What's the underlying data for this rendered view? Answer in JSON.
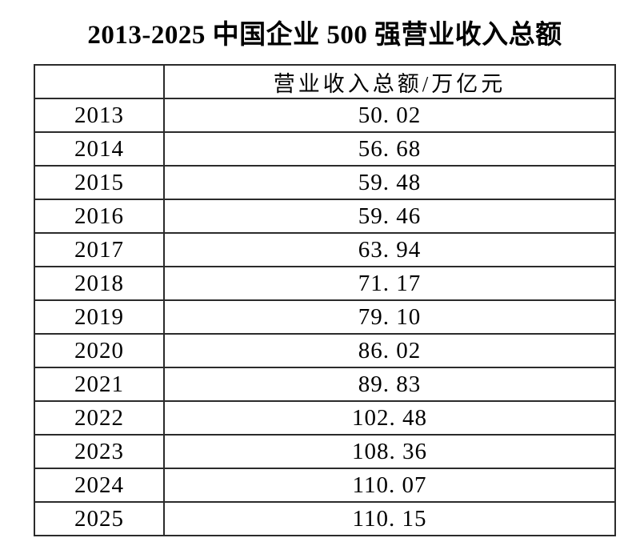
{
  "title": "2013-2025 中国企业 500 强营业收入总额",
  "table": {
    "header": {
      "year_label": "",
      "value_label": "营业收入总额/万亿元"
    },
    "rows": [
      {
        "year": "2013",
        "value": "50. 02"
      },
      {
        "year": "2014",
        "value": "56. 68"
      },
      {
        "year": "2015",
        "value": "59. 48"
      },
      {
        "year": "2016",
        "value": "59. 46"
      },
      {
        "year": "2017",
        "value": "63. 94"
      },
      {
        "year": "2018",
        "value": "71. 17"
      },
      {
        "year": "2019",
        "value": "79. 10"
      },
      {
        "year": "2020",
        "value": "86. 02"
      },
      {
        "year": "2021",
        "value": "89. 83"
      },
      {
        "year": "2022",
        "value": "102. 48"
      },
      {
        "year": "2023",
        "value": "108. 36"
      },
      {
        "year": "2024",
        "value": "110. 07"
      },
      {
        "year": "2025",
        "value": "110. 15"
      }
    ]
  },
  "chart_data": {
    "type": "table",
    "title": "2013-2025 中国企业 500 强营业收入总额",
    "columns": [
      "",
      "营业收入总额/万亿元"
    ],
    "categories": [
      "2013",
      "2014",
      "2015",
      "2016",
      "2017",
      "2018",
      "2019",
      "2020",
      "2021",
      "2022",
      "2023",
      "2024",
      "2025"
    ],
    "values": [
      50.02,
      56.68,
      59.48,
      59.46,
      63.94,
      71.17,
      79.1,
      86.02,
      89.83,
      102.48,
      108.36,
      110.07,
      110.15
    ],
    "unit": "万亿元"
  },
  "colors": {
    "background": "#ffffff",
    "text": "#000000",
    "border": "#2b2b2b"
  }
}
